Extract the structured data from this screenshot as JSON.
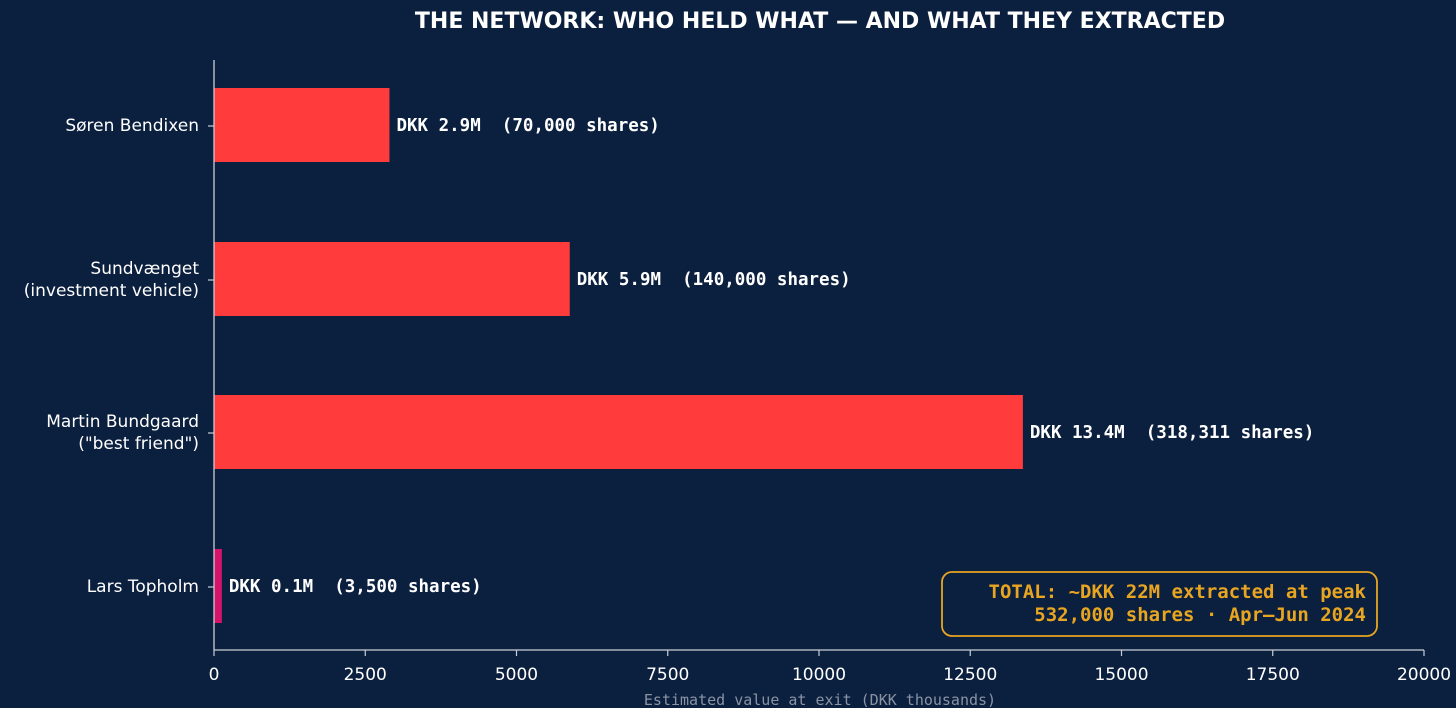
{
  "colors": {
    "background": "#0b1f3e",
    "bar": "#ff3b3b",
    "bar_small": "#d4146a",
    "axis": "#c9cfd8",
    "text": "#ffffff",
    "axis_title": "#8a93a3",
    "total": "#e8a521"
  },
  "chart_data": {
    "type": "bar",
    "orientation": "horizontal",
    "title": "THE NETWORK: WHO HELD WHAT — AND WHAT THEY EXTRACTED",
    "xlabel": "Estimated value at exit (DKK thousands)",
    "ylabel": "",
    "xlim": [
      0,
      20000
    ],
    "xticks": [
      0,
      2500,
      5000,
      7500,
      10000,
      12500,
      15000,
      17500,
      20000
    ],
    "grid": false,
    "categories": [
      [
        "Søren Bendixen"
      ],
      [
        "Sundvænget",
        "(investment vehicle)"
      ],
      [
        "Martin Bundgaard",
        "(\"best friend\")"
      ],
      [
        "Lars Topholm"
      ]
    ],
    "values": [
      2900,
      5880,
      13370,
      130
    ],
    "bar_labels": [
      "DKK 2.9M  (70,000 shares)",
      "DKK 5.9M  (140,000 shares)",
      "DKK 13.4M  (318,311 shares)",
      "DKK 0.1M  (3,500 shares)"
    ],
    "bar_colors": [
      "#ff3b3b",
      "#ff3b3b",
      "#ff3b3b",
      "#d4146a"
    ],
    "annotation": {
      "lines": [
        "TOTAL: ~DKK 22M extracted at peak",
        "532,000 shares · Apr–Jun 2024"
      ],
      "placement": "bottom-right"
    }
  }
}
